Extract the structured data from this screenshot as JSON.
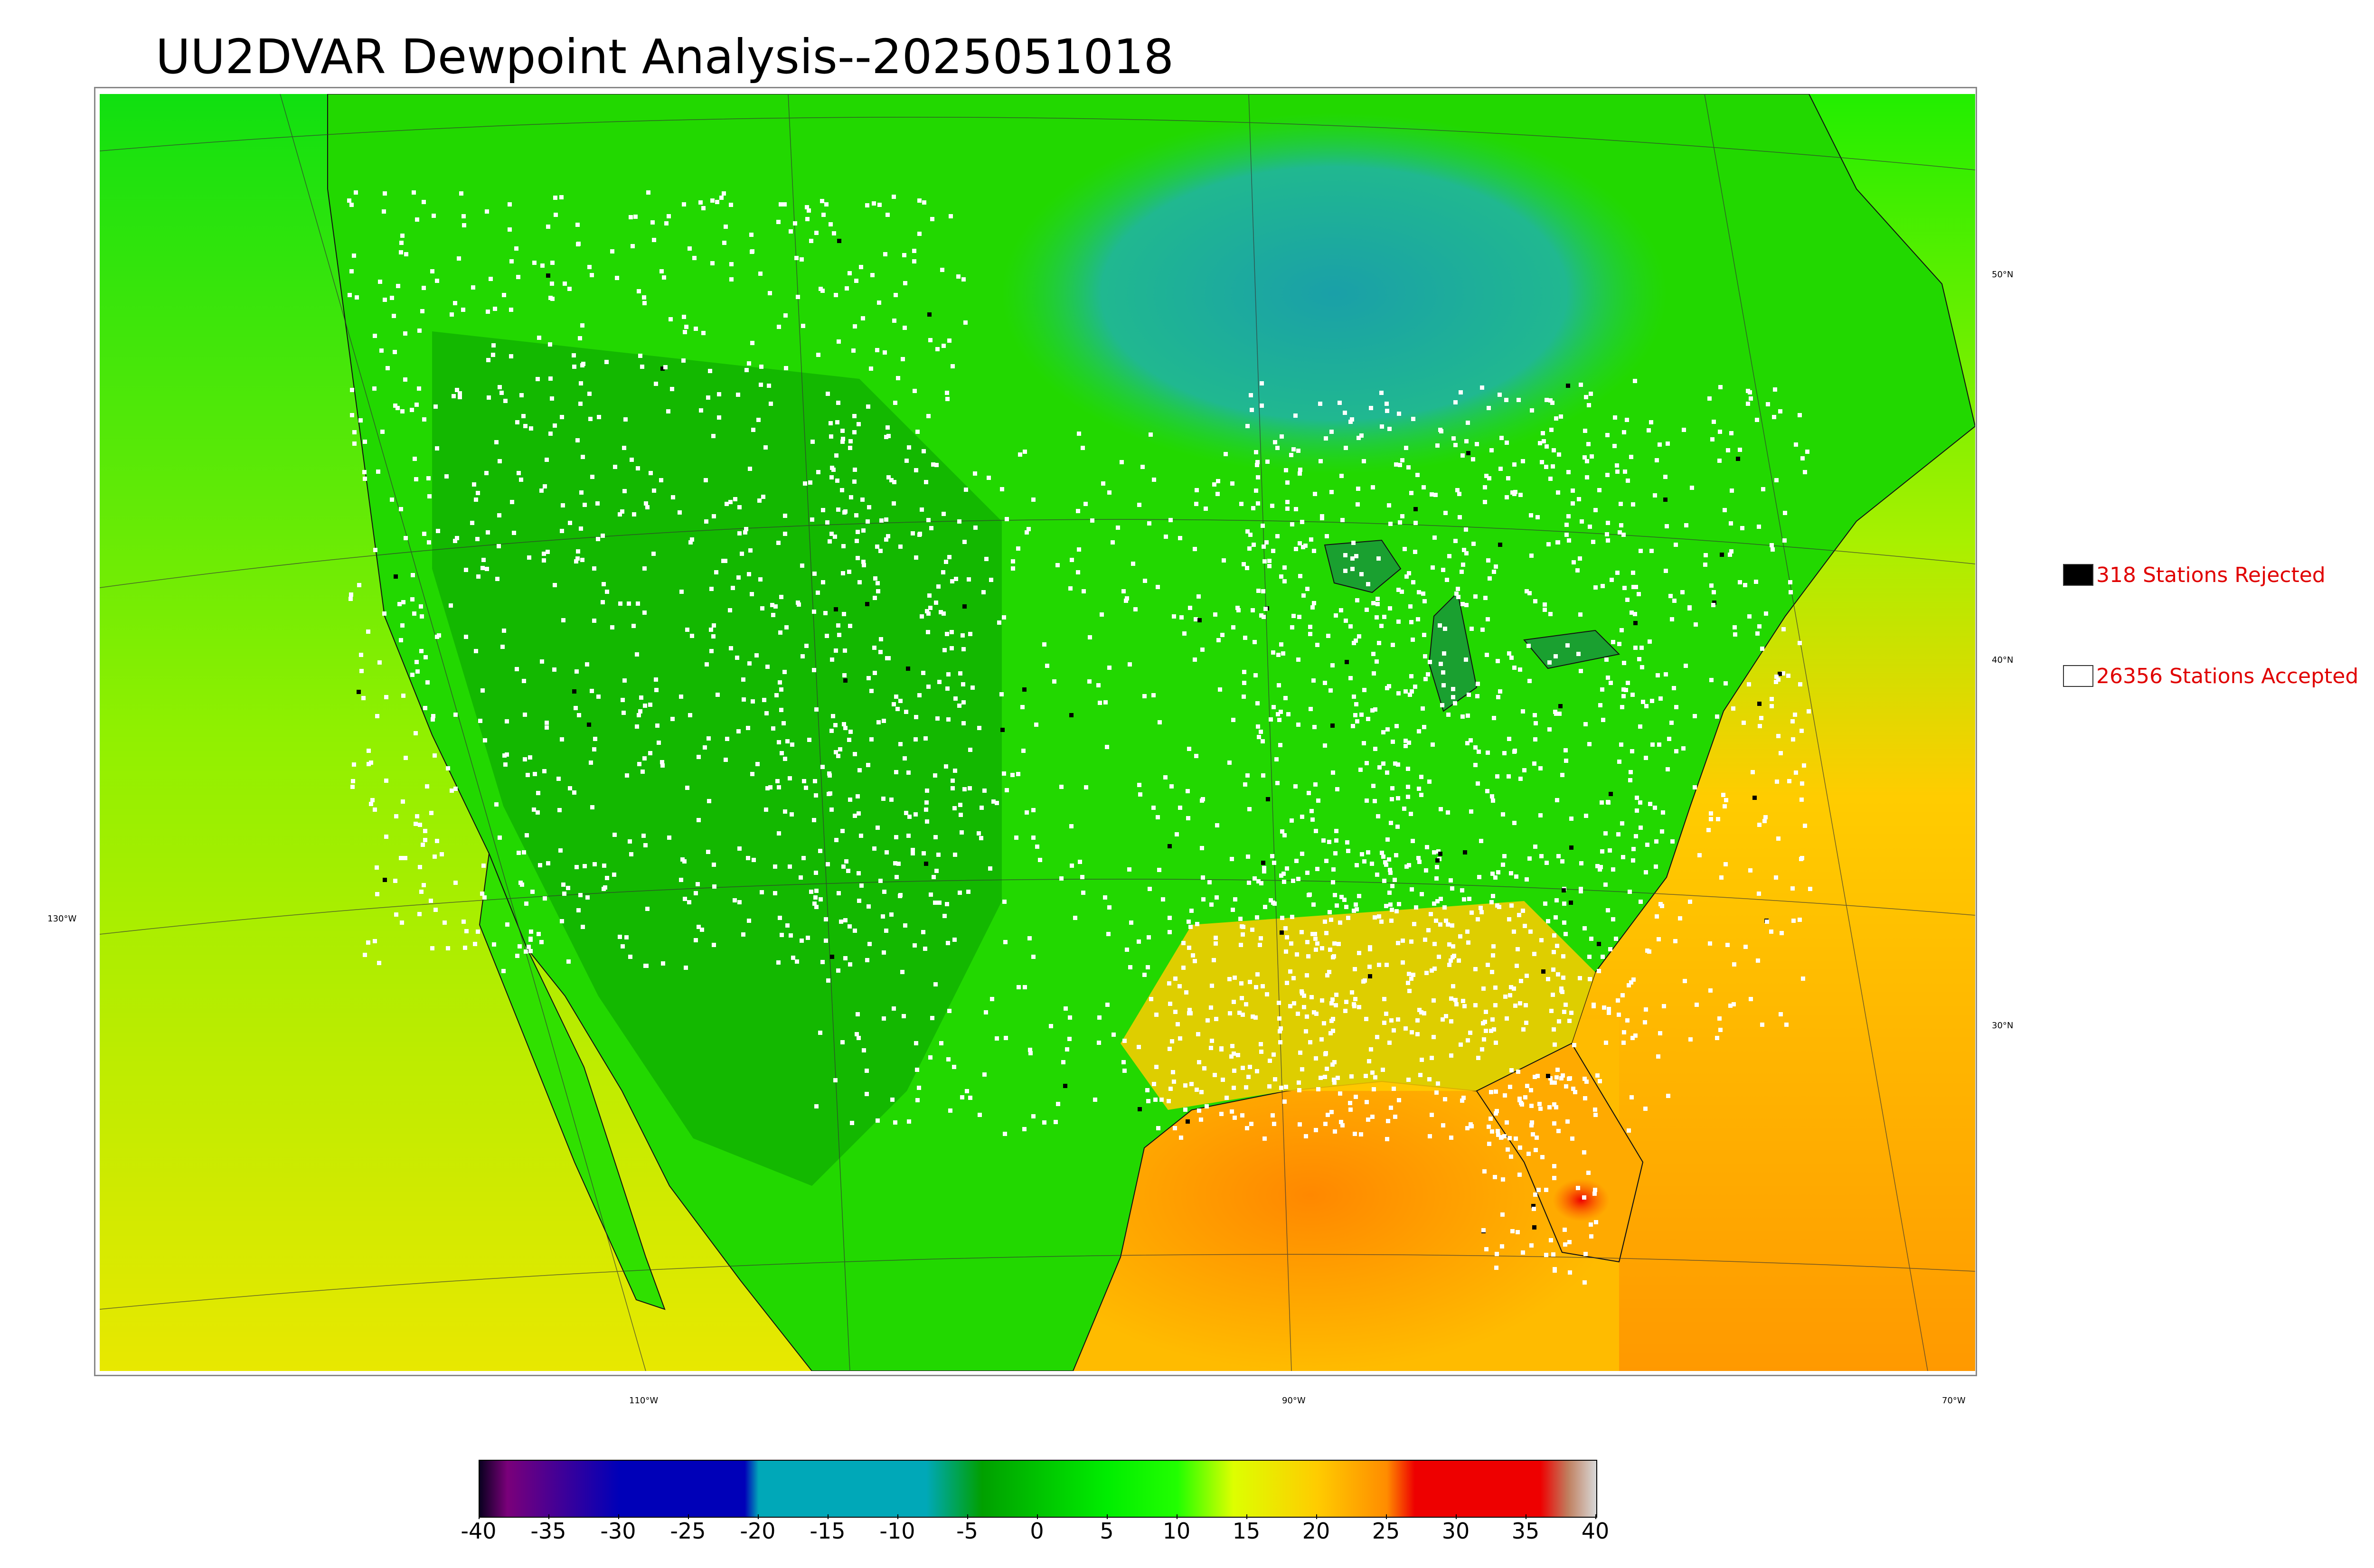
{
  "title": "UU2DVAR Dewpoint Analysis--2025051018",
  "latitude_labels": [
    "50°N",
    "40°N",
    "30°N"
  ],
  "longitude_labels": [
    "130°W",
    "110°W",
    "90°W",
    "70°W"
  ],
  "legend": {
    "rejected": {
      "label": "318 Stations Rejected",
      "color": "#000000"
    },
    "accepted": {
      "label": "26356 Stations Accepted",
      "color": "#ffffff"
    },
    "text_color": "#e00000"
  },
  "colorbar": {
    "ticks": [
      "-40",
      "-35",
      "-30",
      "-25",
      "-20",
      "-15",
      "-10",
      "-5",
      "0",
      "5",
      "10",
      "15",
      "20",
      "25",
      "30",
      "35",
      "40"
    ],
    "stops": [
      {
        "value": -40,
        "color": "#0a0020"
      },
      {
        "value": -38,
        "color": "#7a007a"
      },
      {
        "value": -30,
        "color": "#0000b8"
      },
      {
        "value": -21,
        "color": "#0000b8"
      },
      {
        "value": -20,
        "color": "#00a8b8"
      },
      {
        "value": -8,
        "color": "#00a8b8"
      },
      {
        "value": -4,
        "color": "#00a000"
      },
      {
        "value": 5,
        "color": "#00ee00"
      },
      {
        "value": 10,
        "color": "#22ff00"
      },
      {
        "value": 14,
        "color": "#ddff00"
      },
      {
        "value": 20,
        "color": "#ffcc00"
      },
      {
        "value": 25,
        "color": "#ff8c00"
      },
      {
        "value": 27,
        "color": "#ee0000"
      },
      {
        "value": 36,
        "color": "#ee0000"
      },
      {
        "value": 38,
        "color": "#c08060"
      },
      {
        "value": 40,
        "color": "#d8d8d8"
      }
    ]
  },
  "colors": {
    "ocean_pacific": "#c8f000",
    "ocean_atlantic": "#ffbb00",
    "land_green": "#22dd00",
    "canada_cool": "#20b0a0",
    "gulf_orange": "#ff9900"
  }
}
